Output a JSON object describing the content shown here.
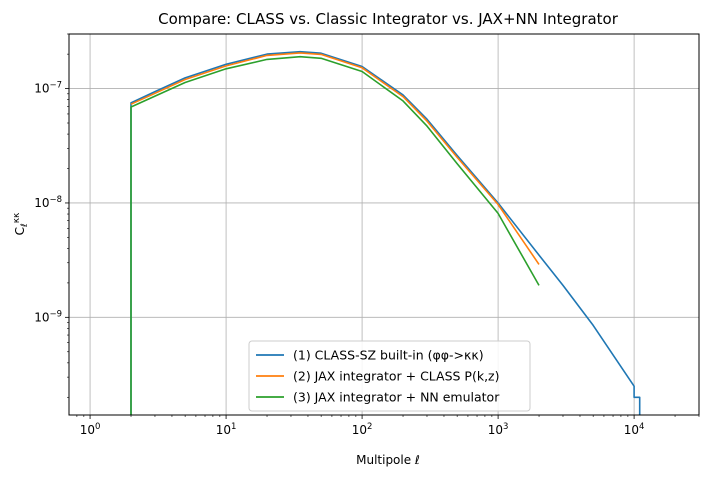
{
  "chart_data": {
    "type": "line",
    "title": "Compare: CLASS vs. Classic Integrator vs. JAX+NN Integrator",
    "xlabel": "Multipole ℓ",
    "ylabel": "C_ℓ^κκ",
    "xscale": "log",
    "yscale": "log",
    "xlim": [
      0.7,
      30000
    ],
    "ylim": [
      1.4e-10,
      3e-07
    ],
    "grid": true,
    "legend_position": "bottom-center",
    "x_ticks": [
      {
        "value": 1,
        "base": "10",
        "exp": "0"
      },
      {
        "value": 10,
        "base": "10",
        "exp": "1"
      },
      {
        "value": 100,
        "base": "10",
        "exp": "2"
      },
      {
        "value": 1000,
        "base": "10",
        "exp": "3"
      },
      {
        "value": 10000,
        "base": "10",
        "exp": "4"
      }
    ],
    "y_ticks": [
      {
        "value": 1e-09,
        "base": "10",
        "exp": "−9"
      },
      {
        "value": 1e-08,
        "base": "10",
        "exp": "−8"
      },
      {
        "value": 1e-07,
        "base": "10",
        "exp": "−7"
      }
    ],
    "series": [
      {
        "name": "(1) CLASS-SZ built-in (φφ->κκ)",
        "color": "#1f77b4",
        "x": [
          2,
          2,
          3,
          5,
          10,
          20,
          35,
          50,
          100,
          200,
          300,
          500,
          1000,
          2000,
          3000,
          5000,
          10000,
          10000,
          11000,
          11000
        ],
        "y": [
          1e-11,
          7.5e-08,
          9.4e-08,
          1.24e-07,
          1.63e-07,
          2e-07,
          2.1e-07,
          2.04e-07,
          1.56e-07,
          8.8e-08,
          5.4e-08,
          2.6e-08,
          1e-08,
          3.5e-09,
          1.9e-09,
          8.5e-10,
          2.5e-10,
          2e-10,
          2e-10,
          1e-11
        ]
      },
      {
        "name": "(2) JAX integrator + CLASS P(k,z)",
        "color": "#ff7f0e",
        "x": [
          2,
          3,
          5,
          10,
          20,
          35,
          50,
          100,
          200,
          300,
          500,
          1000,
          2000
        ],
        "y": [
          7.3e-08,
          9.1e-08,
          1.2e-07,
          1.58e-07,
          1.95e-07,
          2.05e-07,
          1.99e-07,
          1.52e-07,
          8.5e-08,
          5.2e-08,
          2.5e-08,
          9.7e-09,
          2.9e-09
        ]
      },
      {
        "name": "(3) JAX integrator + NN emulator",
        "color": "#2ca02c",
        "x": [
          2,
          2,
          3,
          5,
          10,
          20,
          35,
          50,
          100,
          200,
          300,
          500,
          1000,
          2000
        ],
        "y": [
          1e-11,
          6.9e-08,
          8.6e-08,
          1.13e-07,
          1.49e-07,
          1.8e-07,
          1.9e-07,
          1.84e-07,
          1.41e-07,
          7.8e-08,
          4.7e-08,
          2.2e-08,
          8.1e-09,
          1.9e-09
        ]
      }
    ]
  }
}
